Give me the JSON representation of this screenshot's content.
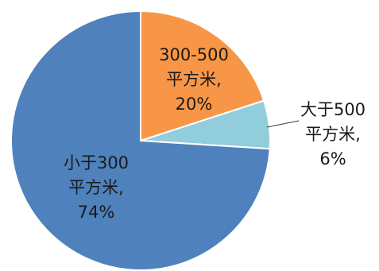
{
  "chart_data": {
    "type": "pie",
    "title": "",
    "start_angle_deg": 0,
    "direction": "clockwise",
    "slices": [
      {
        "category_lines": [
          "300-500",
          "平方米,"
        ],
        "percent_label": "20%",
        "value": 20,
        "color": "#F79646",
        "label_position": "inside"
      },
      {
        "category_lines": [
          "大于500",
          "平方米,"
        ],
        "percent_label": "6%",
        "value": 6,
        "color": "#92CDDC",
        "label_position": "outside-right"
      },
      {
        "category_lines": [
          "小于300",
          "平方米,"
        ],
        "percent_label": "74%",
        "value": 74,
        "color": "#4F81BD",
        "label_position": "inside"
      }
    ]
  }
}
